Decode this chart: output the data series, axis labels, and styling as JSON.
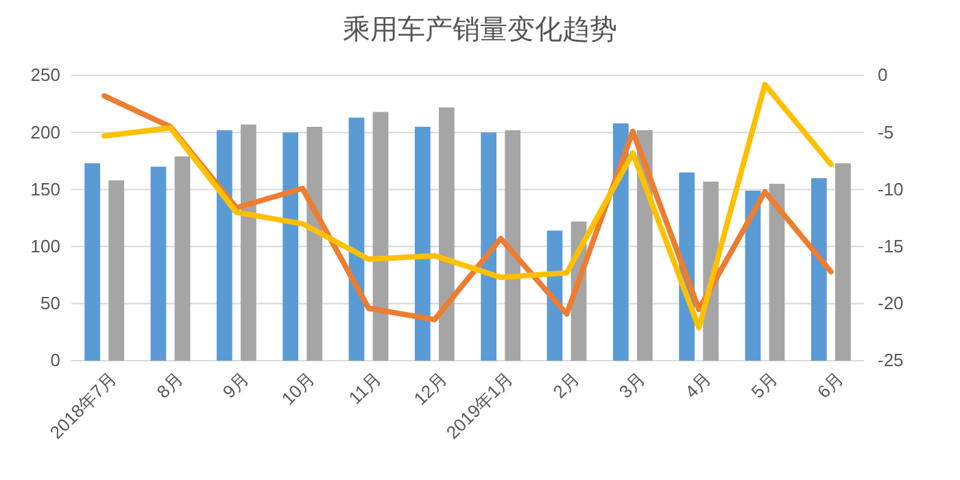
{
  "chart_data": {
    "type": "bar",
    "title": "乘用车产销量变化趋势",
    "categories": [
      "2018年7月",
      "8月",
      "9月",
      "10月",
      "11月",
      "12月",
      "2019年1月",
      "2月",
      "3月",
      "4月",
      "5月",
      "6月"
    ],
    "series": [
      {
        "color": "#5b9bd5",
        "values": [
          173,
          170,
          202,
          200,
          213,
          205,
          200,
          114,
          208,
          165,
          149,
          160
        ]
      },
      {
        "color": "#a5a5a5",
        "values": [
          158,
          179,
          207,
          205,
          218,
          222,
          202,
          122,
          202,
          157,
          155,
          173
        ]
      },
      {
        "type": "line",
        "axis": "y2",
        "color": "#ed7d31",
        "values": [
          -1.8,
          -4.5,
          -11.6,
          -9.9,
          -20.4,
          -21.4,
          -14.3,
          -20.9,
          -4.9,
          -20.5,
          -10.2,
          -17.2
        ]
      },
      {
        "type": "line",
        "axis": "y2",
        "color": "#ffc000",
        "values": [
          -5.3,
          -4.6,
          -12.0,
          -13.0,
          -16.1,
          -15.8,
          -17.7,
          -17.3,
          -6.8,
          -22.1,
          -0.8,
          -7.8
        ]
      }
    ],
    "ylim": [
      0,
      250
    ],
    "yticks": [
      0,
      50,
      100,
      150,
      200,
      250
    ],
    "y2lim": [
      -25,
      0
    ],
    "y2ticks": [
      -25,
      -20,
      -15,
      -10,
      -5,
      0
    ],
    "grid": "y",
    "marker": "none",
    "line_style": "solid"
  }
}
